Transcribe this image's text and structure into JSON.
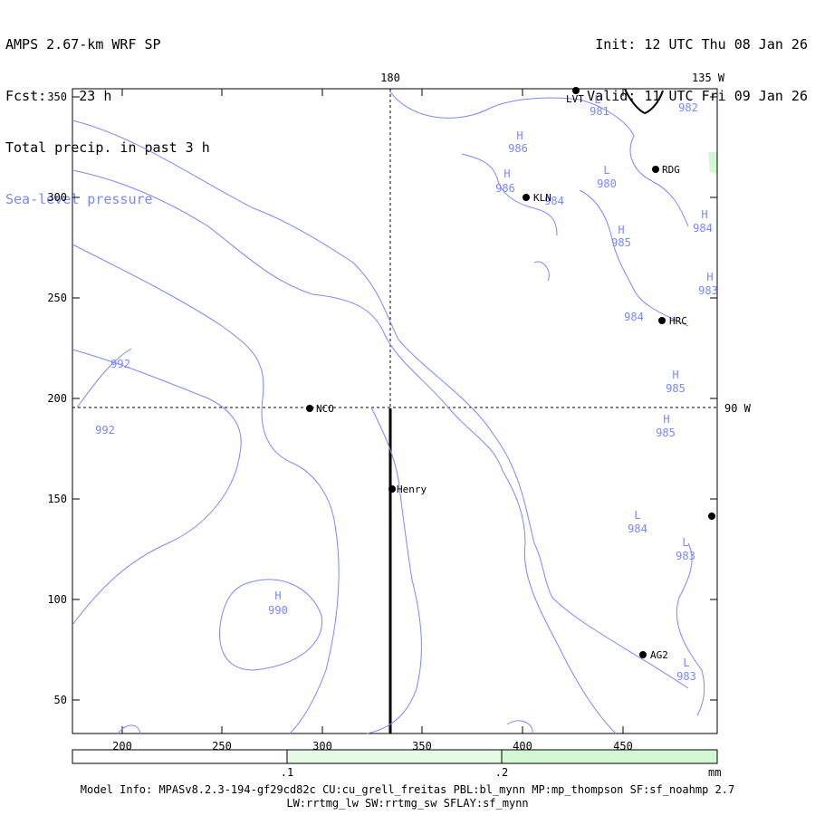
{
  "header": {
    "title": "AMPS 2.67-km WRF SP",
    "forecast": "Fcst:    23 h",
    "field": "Total precip. in past 3 h",
    "overlay": "Sea-level pressure",
    "init": "Init: 12 UTC Thu 08 Jan 26",
    "valid": "Valid: 11 UTC Fri 09 Jan 26"
  },
  "axes": {
    "x_ticks": [
      "200",
      "250",
      "300",
      "350",
      "400",
      "450"
    ],
    "y_ticks": [
      "350",
      "300",
      "250",
      "200",
      "150",
      "100",
      "50"
    ],
    "meridian_top": "180",
    "meridian_top_right": "135 W",
    "parallel_right": "90 W"
  },
  "stations": [
    {
      "name": "LVT"
    },
    {
      "name": "RDG"
    },
    {
      "name": "KLN"
    },
    {
      "name": "HRC"
    },
    {
      "name": "NCO"
    },
    {
      "name": "Henry"
    },
    {
      "name": "AG2"
    },
    {
      "name": ""
    }
  ],
  "pressure_labels": [
    {
      "letter": "L",
      "value": "981"
    },
    {
      "letter": "",
      "value": "982"
    },
    {
      "letter": "H",
      "value": "986"
    },
    {
      "letter": "H",
      "value": "986"
    },
    {
      "letter": "",
      "value": "984"
    },
    {
      "letter": "L",
      "value": "980"
    },
    {
      "letter": "H",
      "value": "985"
    },
    {
      "letter": "H",
      "value": "984"
    },
    {
      "letter": "H",
      "value": "983"
    },
    {
      "letter": "",
      "value": "984"
    },
    {
      "letter": "H",
      "value": "985"
    },
    {
      "letter": "H",
      "value": "985"
    },
    {
      "letter": "",
      "value": "992"
    },
    {
      "letter": "",
      "value": "992"
    },
    {
      "letter": "L",
      "value": "984"
    },
    {
      "letter": "L",
      "value": "983"
    },
    {
      "letter": "H",
      "value": "990"
    },
    {
      "letter": "L",
      "value": "983"
    }
  ],
  "colorbar": {
    "labels": [
      ".1",
      ".2"
    ],
    "unit": "mm",
    "colors": [
      "#ffffff",
      "#e6fbe6",
      "#d4f7d4"
    ]
  },
  "footer": {
    "line1": "Model Info: MPASv8.2.3-194-gf29cd82c CU:cu_grell_freitas PBL:bl_mynn MP:mp_thompson SF:sf_noahmp 2.7",
    "line2": "LW:rrtmg_lw SW:rrtmg_sw SFLAY:sf_mynn"
  },
  "colors": {
    "contour": "#7a88ff",
    "frame": "#000000",
    "precip": "#d4f7d4"
  }
}
